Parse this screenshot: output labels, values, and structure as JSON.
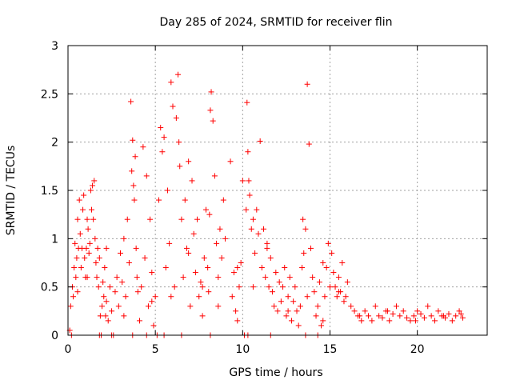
{
  "chart_data": {
    "type": "scatter",
    "title": "Day 285 of 2024, SRMTID for receiver flin",
    "xlabel": "GPS time / hours",
    "ylabel": "SRMTID / TECUs",
    "xlim": [
      0,
      24
    ],
    "ylim": [
      0,
      3
    ],
    "xticks": [
      0,
      5,
      10,
      15,
      20
    ],
    "yticks": [
      0,
      0.5,
      1,
      1.5,
      2,
      2.5,
      3
    ],
    "xtick_labels": [
      "0",
      "5",
      "10",
      "15",
      "20"
    ],
    "ytick_labels": [
      "0",
      "0.5",
      "1",
      "1.5",
      "2",
      "2.5",
      "3"
    ],
    "grid": true,
    "marker": "+",
    "series": [
      {
        "name": "SRMTID",
        "color": "#ff0000",
        "x": [
          0.1,
          0.15,
          0.25,
          0.3,
          0.35,
          0.4,
          0.45,
          0.5,
          0.55,
          0.6,
          0.65,
          0.7,
          0.75,
          0.8,
          0.85,
          0.9,
          0.95,
          1.0,
          1.05,
          1.1,
          1.15,
          1.2,
          1.25,
          1.3,
          1.35,
          1.4,
          1.45,
          1.5,
          1.55,
          1.6,
          1.65,
          1.7,
          1.75,
          1.8,
          1.85,
          1.9,
          1.95,
          2.0,
          2.05,
          2.1,
          2.15,
          2.2,
          2.3,
          2.4,
          2.5,
          2.6,
          2.7,
          2.8,
          2.9,
          3.0,
          3.1,
          3.2,
          3.3,
          3.4,
          3.5,
          3.6,
          3.65,
          3.7,
          3.75,
          3.8,
          3.85,
          3.9,
          3.95,
          4.0,
          4.1,
          4.2,
          4.3,
          4.4,
          4.5,
          4.6,
          4.7,
          4.8,
          4.9,
          5.0,
          5.2,
          5.3,
          5.4,
          5.5,
          5.6,
          5.7,
          5.8,
          5.9,
          6.0,
          6.1,
          6.2,
          6.3,
          6.35,
          6.4,
          6.5,
          6.6,
          6.7,
          6.8,
          6.9,
          7.0,
          7.1,
          7.2,
          7.3,
          7.4,
          7.5,
          7.6,
          7.7,
          7.8,
          7.9,
          8.0,
          8.05,
          8.1,
          8.15,
          8.2,
          8.3,
          8.4,
          8.5,
          8.6,
          8.7,
          8.8,
          8.9,
          9.0,
          9.3,
          9.4,
          9.5,
          9.6,
          9.7,
          9.8,
          9.9,
          10.0,
          10.1,
          10.2,
          10.25,
          10.3,
          10.35,
          10.4,
          10.5,
          10.6,
          10.7,
          10.8,
          10.9,
          11.0,
          11.1,
          11.2,
          11.3,
          11.4,
          11.5,
          11.6,
          11.7,
          11.8,
          11.9,
          12.0,
          12.1,
          12.2,
          12.3,
          12.4,
          12.5,
          12.6,
          12.7,
          12.8,
          12.9,
          13.0,
          13.1,
          13.2,
          13.3,
          13.4,
          13.45,
          13.5,
          13.6,
          13.7,
          13.8,
          13.9,
          14.0,
          14.1,
          14.2,
          14.3,
          14.4,
          14.5,
          14.6,
          14.7,
          14.8,
          14.9,
          15.0,
          15.1,
          15.2,
          15.3,
          15.4,
          15.5,
          15.6,
          15.7,
          15.8,
          15.9,
          16.0,
          16.2,
          16.4,
          16.6,
          16.8,
          17.0,
          17.2,
          17.4,
          17.6,
          17.8,
          18.0,
          18.2,
          18.4,
          18.6,
          18.8,
          19.0,
          19.2,
          19.4,
          19.6,
          19.8,
          20.0,
          20.2,
          20.4,
          20.6,
          20.8,
          21.0,
          21.2,
          21.4,
          21.6,
          21.8,
          22.0,
          22.2,
          22.4,
          22.6,
          0.2,
          1.8,
          2.5,
          3.7,
          4.5,
          5.1,
          5.5,
          6.5,
          8.15,
          10.3,
          11.6,
          13.6,
          14.3,
          0.55,
          1.1,
          2.2,
          3.2,
          4.8,
          5.9,
          6.9,
          7.7,
          8.6,
          9.7,
          10.6,
          11.4,
          12.6,
          13.7,
          14.6,
          15.5,
          16.7,
          18.3,
          19.9,
          21.5,
          22.5
        ],
        "y": [
          0.05,
          0.3,
          0.5,
          0.4,
          0.7,
          0.95,
          0.6,
          0.8,
          1.2,
          0.9,
          1.4,
          1.05,
          0.7,
          0.9,
          1.3,
          1.45,
          0.8,
          0.6,
          0.9,
          1.2,
          1.1,
          0.85,
          0.95,
          1.5,
          1.3,
          1.55,
          1.2,
          1.6,
          1.0,
          0.75,
          0.6,
          0.9,
          0.5,
          0.8,
          0.2,
          0.0,
          0.3,
          0.55,
          0.4,
          0.7,
          0.2,
          0.35,
          0.15,
          0.5,
          0.25,
          0.0,
          0.45,
          0.6,
          0.3,
          0.85,
          0.55,
          1.0,
          0.4,
          1.2,
          0.75,
          2.42,
          1.7,
          2.02,
          1.55,
          1.4,
          1.85,
          0.9,
          0.6,
          0.45,
          0.15,
          0.5,
          1.95,
          0.8,
          1.65,
          0.3,
          1.2,
          0.35,
          0.1,
          0.4,
          1.4,
          2.15,
          1.9,
          2.05,
          0.7,
          1.5,
          0.95,
          2.62,
          2.37,
          0.5,
          2.25,
          2.7,
          2.0,
          1.75,
          1.2,
          0.6,
          1.4,
          0.9,
          1.8,
          0.3,
          1.6,
          1.05,
          0.65,
          1.2,
          0.4,
          0.55,
          0.2,
          0.8,
          1.3,
          0.7,
          0.45,
          1.25,
          2.33,
          2.52,
          2.22,
          1.65,
          0.95,
          0.6,
          1.1,
          0.8,
          1.4,
          1.0,
          1.8,
          0.4,
          0.65,
          0.25,
          0.15,
          0.5,
          0.75,
          1.6,
          0.0,
          1.3,
          2.41,
          1.9,
          1.6,
          1.45,
          1.1,
          1.2,
          0.85,
          1.3,
          1.05,
          2.01,
          0.7,
          1.1,
          0.6,
          0.9,
          0.5,
          0.8,
          0.45,
          0.3,
          0.65,
          0.25,
          0.55,
          0.35,
          0.5,
          0.7,
          0.2,
          0.4,
          0.6,
          0.15,
          0.35,
          0.5,
          0.25,
          0.1,
          0.3,
          0.7,
          1.2,
          0.85,
          1.1,
          2.6,
          1.98,
          0.9,
          0.6,
          0.45,
          0.2,
          0.3,
          0.55,
          0.1,
          0.15,
          0.4,
          0.7,
          0.95,
          0.5,
          0.85,
          0.65,
          0.5,
          0.4,
          0.6,
          0.45,
          0.75,
          0.35,
          0.4,
          0.55,
          0.3,
          0.25,
          0.2,
          0.15,
          0.25,
          0.2,
          0.15,
          0.3,
          0.2,
          0.18,
          0.25,
          0.15,
          0.22,
          0.3,
          0.2,
          0.25,
          0.18,
          0.15,
          0.2,
          0.25,
          0.22,
          0.18,
          0.3,
          0.2,
          0.15,
          0.25,
          0.2,
          0.18,
          0.22,
          0.15,
          0.2,
          0.25,
          0.18,
          0.0,
          0.0,
          0.0,
          0.0,
          0.0,
          0.0,
          0.0,
          0.0,
          0.0,
          0.0,
          0.0,
          0.0,
          0.0,
          0.45,
          0.6,
          0.9,
          0.2,
          0.65,
          0.4,
          0.85,
          0.5,
          0.3,
          0.7,
          0.5,
          0.95,
          0.25,
          0.4,
          0.75,
          0.45,
          0.2,
          0.25,
          0.15,
          0.2,
          0.22
        ]
      }
    ]
  }
}
